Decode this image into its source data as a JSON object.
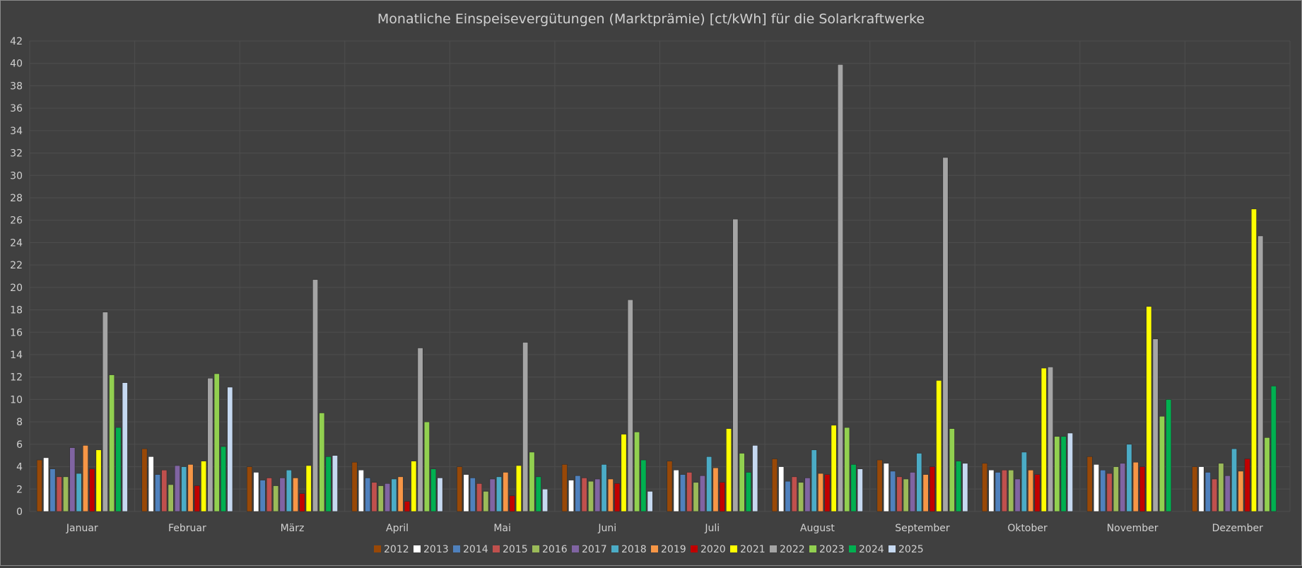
{
  "chart_data": {
    "type": "bar",
    "title": "Monatliche Einspeisevergütungen (Marktprämie)  [ct/kWh] für die Solarkraftwerke",
    "xlabel": "",
    "ylabel": "",
    "ylim": [
      0,
      42
    ],
    "yticks": [
      0,
      2,
      4,
      6,
      8,
      10,
      12,
      14,
      16,
      18,
      20,
      22,
      24,
      26,
      28,
      30,
      32,
      34,
      36,
      38,
      40,
      42
    ],
    "grid": true,
    "legend_position": "bottom",
    "categories": [
      "Januar",
      "Februar",
      "März",
      "April",
      "Mai",
      "Juni",
      "Juli",
      "August",
      "September",
      "Oktober",
      "November",
      "Dezember"
    ],
    "series": [
      {
        "name": "2012",
        "color": "#984807",
        "values": [
          4.6,
          5.6,
          4.0,
          4.4,
          4.0,
          4.2,
          4.5,
          4.7,
          4.6,
          4.3,
          4.9,
          4.0
        ]
      },
      {
        "name": "2013",
        "color": "#ffffff",
        "values": [
          4.8,
          4.9,
          3.5,
          3.7,
          3.3,
          2.8,
          3.7,
          4.0,
          4.3,
          3.7,
          4.2,
          4.0
        ]
      },
      {
        "name": "2014",
        "color": "#4f81bd",
        "values": [
          3.8,
          3.3,
          2.8,
          3.0,
          3.0,
          3.2,
          3.3,
          2.7,
          3.6,
          3.5,
          3.7,
          3.5
        ]
      },
      {
        "name": "2015",
        "color": "#c0504d",
        "values": [
          3.1,
          3.7,
          3.0,
          2.6,
          2.5,
          3.0,
          3.5,
          3.1,
          3.1,
          3.7,
          3.4,
          2.9
        ]
      },
      {
        "name": "2016",
        "color": "#9bbb59",
        "values": [
          3.1,
          2.4,
          2.3,
          2.3,
          1.8,
          2.7,
          2.6,
          2.6,
          2.9,
          3.7,
          4.0,
          4.3
        ]
      },
      {
        "name": "2017",
        "color": "#8064a2",
        "values": [
          5.7,
          4.1,
          3.0,
          2.5,
          2.9,
          2.9,
          3.2,
          3.0,
          3.5,
          2.9,
          4.3,
          3.2
        ]
      },
      {
        "name": "2018",
        "color": "#4bacc6",
        "values": [
          3.4,
          4.0,
          3.7,
          2.9,
          3.1,
          4.2,
          4.9,
          5.5,
          5.2,
          5.3,
          6.0,
          5.6
        ]
      },
      {
        "name": "2019",
        "color": "#f79646",
        "values": [
          5.9,
          4.2,
          3.0,
          3.1,
          3.5,
          2.9,
          3.9,
          3.4,
          3.3,
          3.7,
          4.4,
          3.6
        ]
      },
      {
        "name": "2020",
        "color": "#c00000",
        "values": [
          3.8,
          2.3,
          1.6,
          0.9,
          1.4,
          2.5,
          2.6,
          3.3,
          4.0,
          3.3,
          4.0,
          4.7
        ]
      },
      {
        "name": "2021",
        "color": "#ffff00",
        "values": [
          5.5,
          4.5,
          4.1,
          4.5,
          4.1,
          6.9,
          7.4,
          7.7,
          11.7,
          12.8,
          18.3,
          27.0
        ]
      },
      {
        "name": "2022",
        "color": "#a5a5a5",
        "values": [
          17.8,
          11.9,
          20.7,
          14.6,
          15.1,
          18.9,
          26.1,
          39.9,
          31.6,
          12.9,
          15.4,
          24.6
        ]
      },
      {
        "name": "2023",
        "color": "#92d050",
        "values": [
          12.2,
          12.3,
          8.8,
          8.0,
          5.3,
          7.1,
          5.2,
          7.5,
          7.4,
          6.7,
          8.5,
          6.6
        ]
      },
      {
        "name": "2024",
        "color": "#00b050",
        "values": [
          7.5,
          5.8,
          4.9,
          3.8,
          3.1,
          4.6,
          3.5,
          4.2,
          4.5,
          6.7,
          10.0,
          11.2
        ]
      },
      {
        "name": "2025",
        "color": "#c6d9f1",
        "values": [
          11.5,
          11.1,
          5.0,
          3.0,
          2.0,
          1.8,
          5.9,
          3.8,
          4.3,
          7.0,
          null,
          null
        ]
      }
    ]
  }
}
